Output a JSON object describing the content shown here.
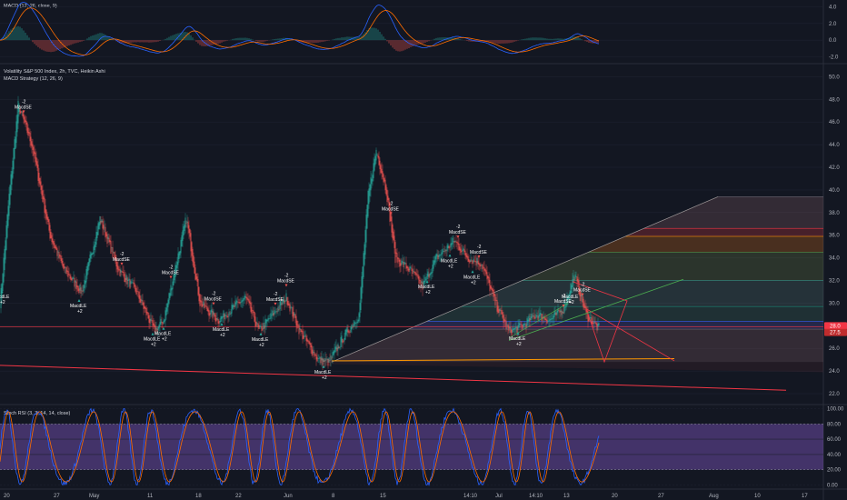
{
  "colors": {
    "background": "#131722",
    "grid": "#1e2230",
    "up": "#26a69a",
    "down": "#ef5350",
    "macd": "#2962ff",
    "signal": "#ff6d00",
    "stoch_k": "#2962ff",
    "stoch_d": "#ff6d00",
    "stoch_band": "#7e57c2",
    "trend_red": "#f23645",
    "orange": "#ff9800",
    "green_line": "#4caf50",
    "price_badge": "#f23645"
  },
  "macd_pane": {
    "title": "MACD (12, 26, close, 9)",
    "y_ticks": [
      "4.0",
      "2.0",
      "0.0",
      "-2.0"
    ],
    "y_range": [
      -2.6,
      4.6
    ]
  },
  "price_pane": {
    "title": "Volatility S&P 500 Index, 2h, TVC, Heikin Ashi",
    "subtitle": "MACD Strategy (12, 26, 9)",
    "y_ticks": [
      "50.0",
      "48.0",
      "46.0",
      "44.0",
      "42.0",
      "40.0",
      "38.0",
      "36.0",
      "34.0",
      "32.0",
      "30.0",
      "28.0",
      "26.0",
      "24.0",
      "22.0"
    ],
    "y_range": [
      21.2,
      51.0
    ],
    "last_price": "28.0",
    "second_price": "27.5"
  },
  "stoch_pane": {
    "title": "Stoch RSI (3, 3, 14, 14, close)",
    "y_ticks": [
      "100.00",
      "80.00",
      "60.00",
      "40.00",
      "20.00",
      "0.00"
    ],
    "band": [
      20,
      80
    ],
    "y_range": [
      -3,
      103
    ]
  },
  "x_axis": {
    "ticks": [
      "20",
      "27",
      "May",
      "11",
      "18",
      "22",
      "Jun",
      "8",
      "15",
      "14:10",
      "Jul",
      "14:10",
      "13",
      "20",
      "27",
      "Aug",
      "10",
      "17"
    ]
  },
  "signals": [
    {
      "text": "MacdLE",
      "sub": "+2",
      "i": 2,
      "pos": "below"
    },
    {
      "text": "MacdSE",
      "sub": "-2",
      "i": 26,
      "pos": "above"
    },
    {
      "text": "MacdSE",
      "sub": "-2",
      "i": 134,
      "pos": "above"
    },
    {
      "text": "MacdLE",
      "sub": "+2",
      "i": 87,
      "pos": "below"
    },
    {
      "text": "MacdSE",
      "sub": "-2",
      "i": 188,
      "pos": "above"
    },
    {
      "text": "MacdLE",
      "sub": "+2",
      "i": 168,
      "pos": "below"
    },
    {
      "text": "MacdLE",
      "sub": "+2",
      "i": 180,
      "pos": "below"
    },
    {
      "text": "MacdSE",
      "sub": "-2",
      "i": 235,
      "pos": "above"
    },
    {
      "text": "MacdLE",
      "sub": "+2",
      "i": 244,
      "pos": "below"
    },
    {
      "text": "MacdLE",
      "sub": "+2",
      "i": 287,
      "pos": "below"
    },
    {
      "text": "MacdSE",
      "sub": "-2",
      "i": 303,
      "pos": "above"
    },
    {
      "text": "MacdSE",
      "sub": "-2",
      "i": 315,
      "pos": "above"
    },
    {
      "text": "MacdLE",
      "sub": "+2",
      "i": 356,
      "pos": "below"
    },
    {
      "text": "MacdSE",
      "sub": "-2",
      "i": 430,
      "pos": "above"
    },
    {
      "text": "MacdLE",
      "sub": "+2",
      "i": 470,
      "pos": "below"
    },
    {
      "text": "MacdSE",
      "sub": "-2",
      "i": 504,
      "pos": "above"
    },
    {
      "text": "MacdLE",
      "sub": "+2",
      "i": 495,
      "pos": "below"
    },
    {
      "text": "MacdSE",
      "sub": "-2",
      "i": 527,
      "pos": "above"
    },
    {
      "text": "MacdLE",
      "sub": "+2",
      "i": 520,
      "pos": "below"
    },
    {
      "text": "MacdLE",
      "sub": "+2",
      "i": 570,
      "pos": "below"
    },
    {
      "text": "MacdSE",
      "sub": "-2",
      "i": 620,
      "pos": "above"
    },
    {
      "text": "MacdLE",
      "sub": "+2",
      "i": 628,
      "pos": "below"
    },
    {
      "text": "MacdSE",
      "sub": "-2",
      "i": 641,
      "pos": "above"
    }
  ],
  "chart_data": {
    "type": "candlestick",
    "title": "Volatility S&P 500 Index, 2h, TVC, Heikin Ashi",
    "series_close_anchors": [
      [
        0,
        30.0
      ],
      [
        10,
        39.5
      ],
      [
        20,
        47.5
      ],
      [
        35,
        44.0
      ],
      [
        55,
        36.0
      ],
      [
        70,
        33.0
      ],
      [
        90,
        31.0
      ],
      [
        110,
        37.5
      ],
      [
        130,
        33.0
      ],
      [
        150,
        31.0
      ],
      [
        170,
        27.5
      ],
      [
        180,
        28.5
      ],
      [
        205,
        37.5
      ],
      [
        220,
        30.0
      ],
      [
        240,
        28.5
      ],
      [
        255,
        29.5
      ],
      [
        270,
        30.5
      ],
      [
        285,
        27.5
      ],
      [
        300,
        29.0
      ],
      [
        315,
        30.5
      ],
      [
        330,
        27.5
      ],
      [
        350,
        25.0
      ],
      [
        362,
        24.8
      ],
      [
        378,
        27.0
      ],
      [
        395,
        29.0
      ],
      [
        405,
        39.5
      ],
      [
        414,
        43.5
      ],
      [
        425,
        40.0
      ],
      [
        435,
        34.0
      ],
      [
        450,
        33.0
      ],
      [
        465,
        31.5
      ],
      [
        480,
        34.0
      ],
      [
        500,
        35.5
      ],
      [
        515,
        34.0
      ],
      [
        530,
        33.5
      ],
      [
        545,
        30.0
      ],
      [
        560,
        27.5
      ],
      [
        575,
        28.0
      ],
      [
        590,
        29.0
      ],
      [
        605,
        28.5
      ],
      [
        620,
        29.5
      ],
      [
        632,
        32.5
      ],
      [
        645,
        29.0
      ],
      [
        658,
        27.8
      ]
    ],
    "fib_levels": [
      "39.4",
      "36.6",
      "35.9",
      "34.5",
      "32.0",
      "29.7",
      "28.4",
      "27.7",
      "24.8"
    ],
    "trend_line_red": [
      [
        0,
        24.5
      ],
      [
        865,
        22.3
      ]
    ],
    "support_line_orange": [
      [
        365,
        24.9
      ],
      [
        742,
        25.1
      ]
    ],
    "horizontal_line_red": 27.9
  }
}
